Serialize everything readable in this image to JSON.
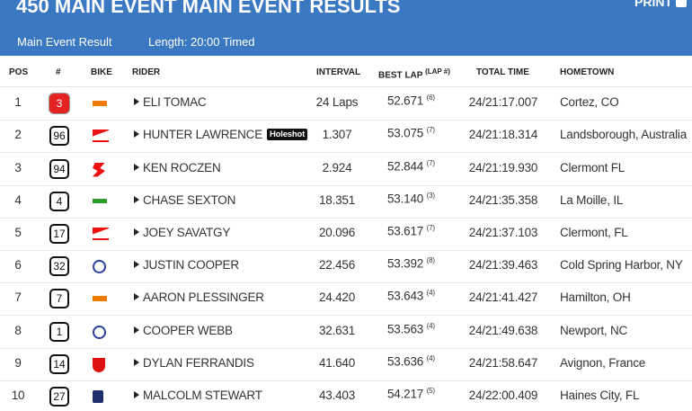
{
  "header": {
    "title": "450 MAIN EVENT MAIN EVENT RESULTS",
    "print": "PRINT",
    "subtitle": "Main Event Result",
    "length": "Length: 20:00 Timed"
  },
  "table": {
    "columns": {
      "pos": "POS",
      "number": "#",
      "bike": "BIKE",
      "rider": "RIDER",
      "interval": "INTERVAL",
      "best_lap": "BEST LAP",
      "lap_no": "(LAP #)",
      "total_time": "TOTAL TIME",
      "hometown": "HOMETOWN"
    },
    "rows": [
      {
        "pos": "1",
        "number": "3",
        "rider": "ELI TOMAC",
        "interval": "24 Laps",
        "best_lap": "52.671",
        "lap": "(6)",
        "total_time": "24/21:17.007",
        "hometown": "Cortez, CO"
      },
      {
        "pos": "2",
        "number": "96",
        "rider": "HUNTER LAWRENCE",
        "badge": "Holeshot",
        "interval": "1.307",
        "best_lap": "53.075",
        "lap": "(7)",
        "total_time": "24/21:18.314",
        "hometown": "Landsborough, Australia"
      },
      {
        "pos": "3",
        "number": "94",
        "rider": "KEN ROCZEN",
        "interval": "2.924",
        "best_lap": "52.844",
        "lap": "(7)",
        "total_time": "24/21:19.930",
        "hometown": "Clermont FL"
      },
      {
        "pos": "4",
        "number": "4",
        "rider": "CHASE SEXTON",
        "interval": "18.351",
        "best_lap": "53.140",
        "lap": "(3)",
        "total_time": "24/21:35.358",
        "hometown": "La Moille, IL"
      },
      {
        "pos": "5",
        "number": "17",
        "rider": "JOEY SAVATGY",
        "interval": "20.096",
        "best_lap": "53.617",
        "lap": "(7)",
        "total_time": "24/21:37.103",
        "hometown": "Clermont, FL"
      },
      {
        "pos": "6",
        "number": "32",
        "rider": "JUSTIN COOPER",
        "interval": "22.456",
        "best_lap": "53.392",
        "lap": "(8)",
        "total_time": "24/21:39.463",
        "hometown": "Cold Spring Harbor, NY"
      },
      {
        "pos": "7",
        "number": "7",
        "rider": "AARON PLESSINGER",
        "interval": "24.420",
        "best_lap": "53.643",
        "lap": "(4)",
        "total_time": "24/21:41.427",
        "hometown": "Hamilton, OH"
      },
      {
        "pos": "8",
        "number": "1",
        "rider": "COOPER WEBB",
        "interval": "32.631",
        "best_lap": "53.563",
        "lap": "(4)",
        "total_time": "24/21:49.638",
        "hometown": "Newport, NC"
      },
      {
        "pos": "9",
        "number": "14",
        "rider": "DYLAN FERRANDIS",
        "interval": "41.640",
        "best_lap": "53.636",
        "lap": "(4)",
        "total_time": "24/21:58.647",
        "hometown": "Avignon, France"
      },
      {
        "pos": "10",
        "number": "27",
        "rider": "MALCOLM STEWART",
        "interval": "43.403",
        "best_lap": "54.217",
        "lap": "(5)",
        "total_time": "24/22:00.409",
        "hometown": "Haines City, FL"
      }
    ]
  }
}
